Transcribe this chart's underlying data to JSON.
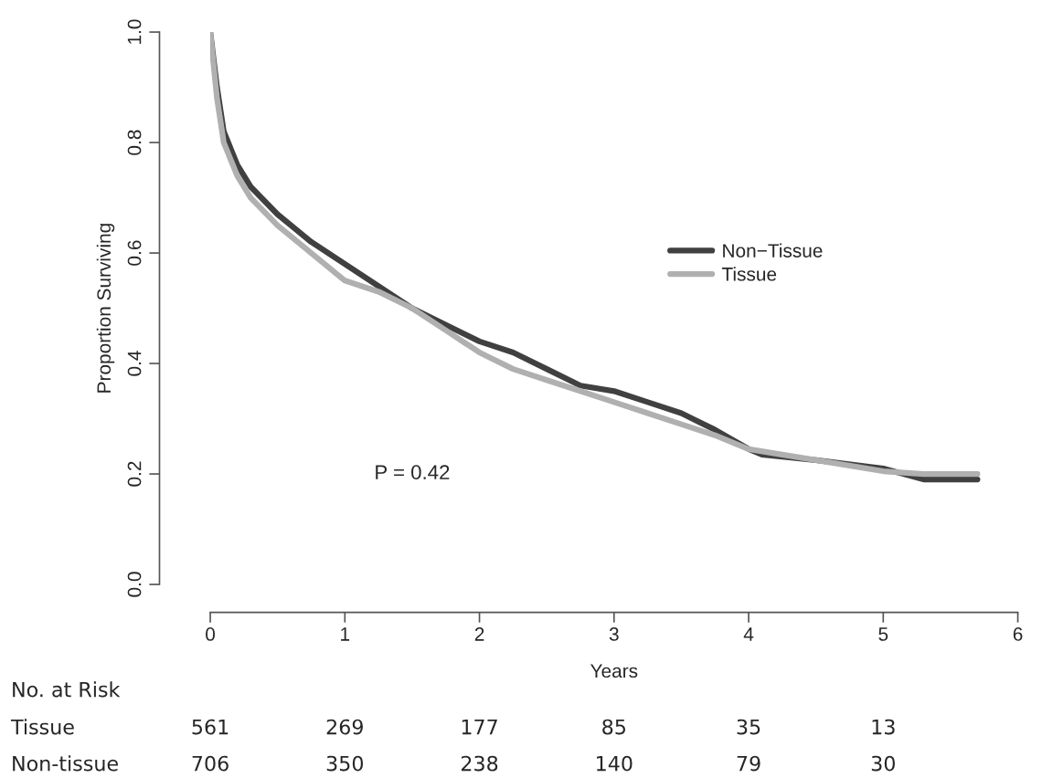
{
  "chart_data": {
    "type": "line",
    "xlabel": "Years",
    "ylabel": "Proportion Surviving",
    "xlim": [
      0,
      6
    ],
    "ylim": [
      0,
      1
    ],
    "xticks": [
      0,
      1,
      2,
      3,
      4,
      5,
      6
    ],
    "yticks": [
      {
        "value": 0,
        "label": "0.0"
      },
      0.2,
      0.4,
      0.6,
      0.8,
      {
        "value": 1,
        "label": "1.0"
      }
    ],
    "grid": false,
    "legend": "center right",
    "series": [
      {
        "name": "Non−Tissue",
        "color": "#404040",
        "x": [
          0,
          0.05,
          0.1,
          0.2,
          0.3,
          0.5,
          0.75,
          1.0,
          1.25,
          1.5,
          1.75,
          2.0,
          2.25,
          2.5,
          2.75,
          3.0,
          3.25,
          3.5,
          3.75,
          4.0,
          4.1,
          4.5,
          5.0,
          5.3,
          5.7
        ],
        "values": [
          1.0,
          0.9,
          0.82,
          0.76,
          0.72,
          0.67,
          0.62,
          0.58,
          0.54,
          0.5,
          0.47,
          0.44,
          0.42,
          0.39,
          0.36,
          0.35,
          0.33,
          0.31,
          0.28,
          0.245,
          0.235,
          0.225,
          0.21,
          0.19,
          0.19
        ]
      },
      {
        "name": "Tissue",
        "color": "#b0b0b0",
        "x": [
          0,
          0.05,
          0.1,
          0.2,
          0.3,
          0.5,
          0.75,
          1.0,
          1.25,
          1.5,
          1.75,
          2.0,
          2.25,
          2.5,
          2.75,
          3.0,
          3.25,
          3.5,
          3.75,
          4.0,
          4.5,
          5.0,
          5.3,
          5.7
        ],
        "values": [
          1.0,
          0.88,
          0.8,
          0.74,
          0.7,
          0.65,
          0.6,
          0.55,
          0.53,
          0.5,
          0.46,
          0.42,
          0.39,
          0.37,
          0.35,
          0.33,
          0.31,
          0.29,
          0.27,
          0.245,
          0.225,
          0.205,
          0.2,
          0.2
        ]
      }
    ],
    "annotations": [
      "P = 0.42",
      "No. at Risk",
      "Tissue",
      "Non-tissue",
      "561",
      "269",
      "177",
      "85",
      "35",
      "13",
      "706",
      "350",
      "238",
      "140",
      "79",
      "30"
    ]
  }
}
